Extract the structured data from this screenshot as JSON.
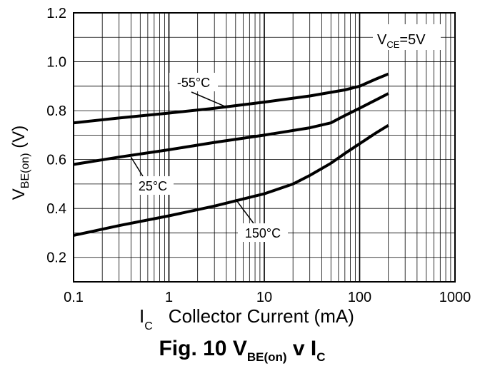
{
  "chart_data": {
    "type": "line",
    "title": {
      "prefix": "Fig. 10 V",
      "sub1": "BE(on)",
      "middle": " v I",
      "sub2": "C"
    },
    "ylabel": {
      "main": "V",
      "sub": "BE(on)",
      "suffix": " (V)"
    },
    "xlabel": {
      "main": "I",
      "sub": "C",
      "rest": "Collector Current (mA)"
    },
    "xscale": "log",
    "xlim": [
      0.1,
      1000
    ],
    "ylim": [
      0.1,
      1.2
    ],
    "grid": true,
    "x_ticks": [
      {
        "value": 0.1,
        "label": "0.1"
      },
      {
        "value": 1,
        "label": "1"
      },
      {
        "value": 10,
        "label": "10"
      },
      {
        "value": 100,
        "label": "100"
      },
      {
        "value": 1000,
        "label": "1000"
      }
    ],
    "y_ticks": [
      {
        "value": 0.2,
        "label": "0.2"
      },
      {
        "value": 0.4,
        "label": "0.4"
      },
      {
        "value": 0.6,
        "label": "0.6"
      },
      {
        "value": 0.8,
        "label": "0.8"
      },
      {
        "value": 1.0,
        "label": "1.0"
      },
      {
        "value": 1.2,
        "label": "1.2"
      }
    ],
    "condition": {
      "main": "V",
      "sub": "CE",
      "rest": "=5V"
    },
    "series": [
      {
        "name": "-55°C",
        "x": [
          0.1,
          0.3,
          1,
          3,
          10,
          30,
          50,
          70,
          100,
          150,
          200
        ],
        "y": [
          0.75,
          0.77,
          0.79,
          0.81,
          0.835,
          0.86,
          0.875,
          0.885,
          0.9,
          0.93,
          0.95
        ]
      },
      {
        "name": "25°C",
        "x": [
          0.1,
          0.3,
          1,
          3,
          10,
          30,
          50,
          70,
          100,
          150,
          200
        ],
        "y": [
          0.58,
          0.61,
          0.64,
          0.67,
          0.7,
          0.73,
          0.75,
          0.78,
          0.81,
          0.845,
          0.87
        ]
      },
      {
        "name": "150°C",
        "x": [
          0.1,
          0.3,
          1,
          3,
          10,
          20,
          30,
          50,
          70,
          100,
          150,
          200
        ],
        "y": [
          0.29,
          0.33,
          0.37,
          0.41,
          0.46,
          0.5,
          0.535,
          0.585,
          0.625,
          0.665,
          0.71,
          0.74
        ]
      }
    ]
  }
}
